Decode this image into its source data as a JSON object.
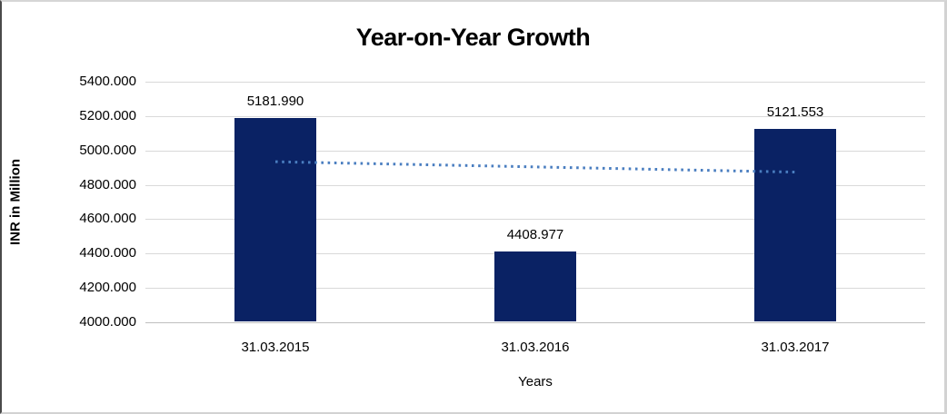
{
  "chart": {
    "colors": {
      "bar_fill": "#0A2264",
      "trendline": "#4A7EC0",
      "gridline": "#D9D9D9",
      "axis_line": "#BFBFBF",
      "text": "#000000",
      "background": "#FFFFFF"
    }
  },
  "chart_data": {
    "type": "bar",
    "title": "Year-on-Year Growth",
    "xlabel": "Years",
    "ylabel": "INR in Million",
    "categories": [
      "31.03.2015",
      "31.03.2016",
      "31.03.2017"
    ],
    "values": [
      5181.99,
      4408.977,
      5121.553
    ],
    "data_labels": [
      "5181.990",
      "4408.977",
      "5121.553"
    ],
    "ylim": [
      4000,
      5400
    ],
    "ytick_step": 200,
    "ytick_labels": [
      "5400.000",
      "5200.000",
      "5000.000",
      "4800.000",
      "4600.000",
      "4400.000",
      "4200.000",
      "4000.000"
    ],
    "grid": "horizontal",
    "legend": "none",
    "trendline": {
      "type": "linear",
      "style": "dotted",
      "endpoint_values": [
        4934.4,
        4874.0
      ]
    }
  }
}
